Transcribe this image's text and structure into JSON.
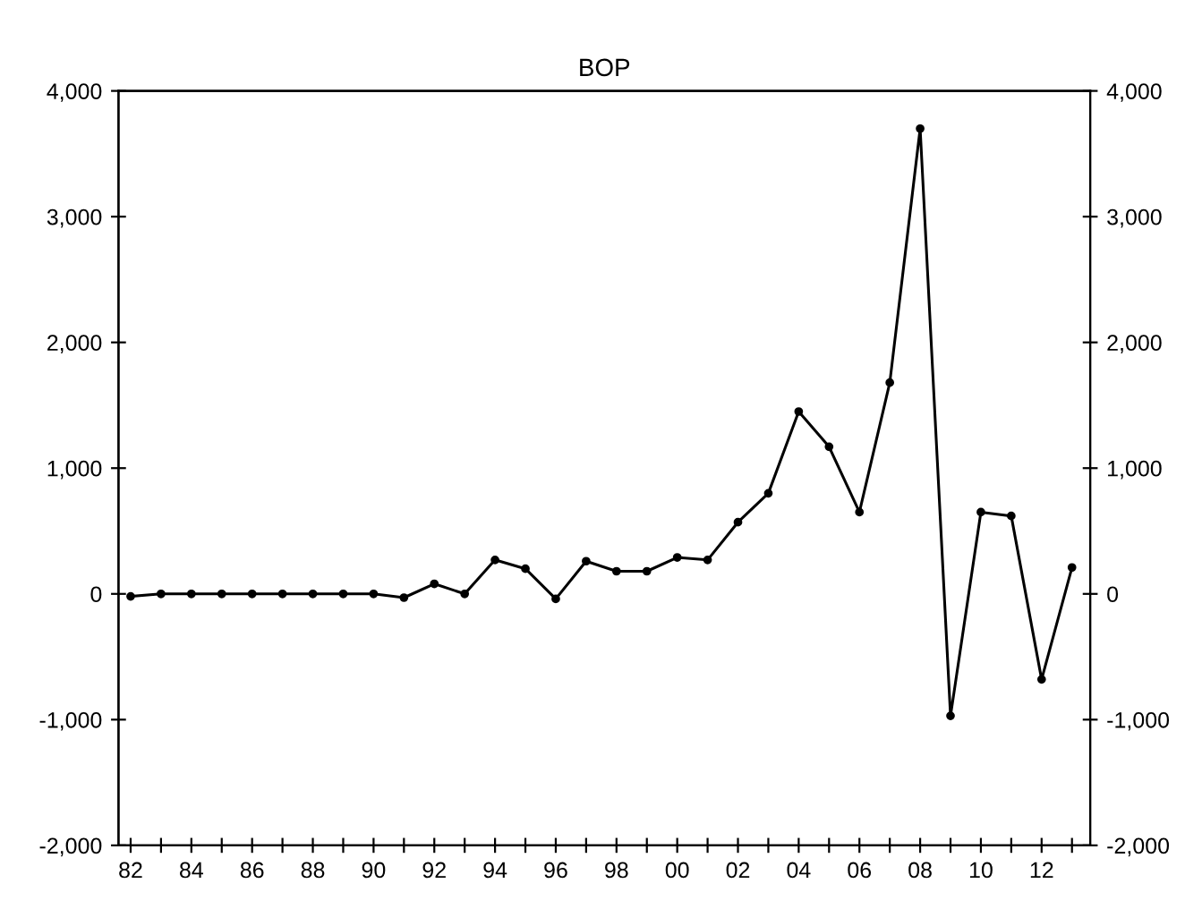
{
  "chart_data": {
    "type": "line",
    "title": "BOP",
    "x": [
      1982,
      1983,
      1984,
      1985,
      1986,
      1987,
      1988,
      1989,
      1990,
      1991,
      1992,
      1993,
      1994,
      1995,
      1996,
      1997,
      1998,
      1999,
      2000,
      2001,
      2002,
      2003,
      2004,
      2005,
      2006,
      2007,
      2008,
      2009,
      2010,
      2011,
      2012,
      2013
    ],
    "series": [
      {
        "color": "#000000",
        "values": [
          -20,
          0,
          0,
          0,
          0,
          0,
          0,
          0,
          0,
          -30,
          80,
          0,
          270,
          200,
          -40,
          260,
          180,
          180,
          290,
          270,
          570,
          800,
          1450,
          1170,
          650,
          1680,
          3700,
          -970,
          650,
          620,
          -680,
          210
        ]
      }
    ],
    "xlim": [
      1981.6,
      2013.6
    ],
    "xticks": [
      {
        "value": 1982,
        "label": "82"
      },
      {
        "value": 1983,
        "label": null
      },
      {
        "value": 1984,
        "label": "84"
      },
      {
        "value": 1985,
        "label": null
      },
      {
        "value": 1986,
        "label": "86"
      },
      {
        "value": 1987,
        "label": null
      },
      {
        "value": 1988,
        "label": "88"
      },
      {
        "value": 1989,
        "label": null
      },
      {
        "value": 1990,
        "label": "90"
      },
      {
        "value": 1991,
        "label": null
      },
      {
        "value": 1992,
        "label": "92"
      },
      {
        "value": 1993,
        "label": null
      },
      {
        "value": 1994,
        "label": "94"
      },
      {
        "value": 1995,
        "label": null
      },
      {
        "value": 1996,
        "label": "96"
      },
      {
        "value": 1997,
        "label": null
      },
      {
        "value": 1998,
        "label": "98"
      },
      {
        "value": 1999,
        "label": null
      },
      {
        "value": 2000,
        "label": "00"
      },
      {
        "value": 2001,
        "label": null
      },
      {
        "value": 2002,
        "label": "02"
      },
      {
        "value": 2003,
        "label": null
      },
      {
        "value": 2004,
        "label": "04"
      },
      {
        "value": 2005,
        "label": null
      },
      {
        "value": 2006,
        "label": "06"
      },
      {
        "value": 2007,
        "label": null
      },
      {
        "value": 2008,
        "label": "08"
      },
      {
        "value": 2009,
        "label": null
      },
      {
        "value": 2010,
        "label": "10"
      },
      {
        "value": 2011,
        "label": null
      },
      {
        "value": 2012,
        "label": "12"
      },
      {
        "value": 2013,
        "label": null
      }
    ],
    "ylim": [
      -2000,
      4000
    ],
    "yticks": [
      {
        "value": -2000,
        "label": "-2,000"
      },
      {
        "value": -1000,
        "label": "-1,000"
      },
      {
        "value": 0,
        "label": "0"
      },
      {
        "value": 1000,
        "label": "1,000"
      },
      {
        "value": 2000,
        "label": "2,000"
      },
      {
        "value": 3000,
        "label": "3,000"
      },
      {
        "value": 4000,
        "label": "4,000"
      }
    ],
    "y2lim": [
      -2000,
      4000
    ],
    "y2ticks": [
      {
        "value": -2000,
        "label": "-2,000"
      },
      {
        "value": -1000,
        "label": "-1,000"
      },
      {
        "value": 0,
        "label": "0"
      },
      {
        "value": 1000,
        "label": "1,000"
      },
      {
        "value": 2000,
        "label": "2,000"
      },
      {
        "value": 3000,
        "label": "3,000"
      },
      {
        "value": 4000,
        "label": "4,000"
      }
    ],
    "marker": "circle",
    "line_style": "solid",
    "grid": false,
    "legend": false
  }
}
